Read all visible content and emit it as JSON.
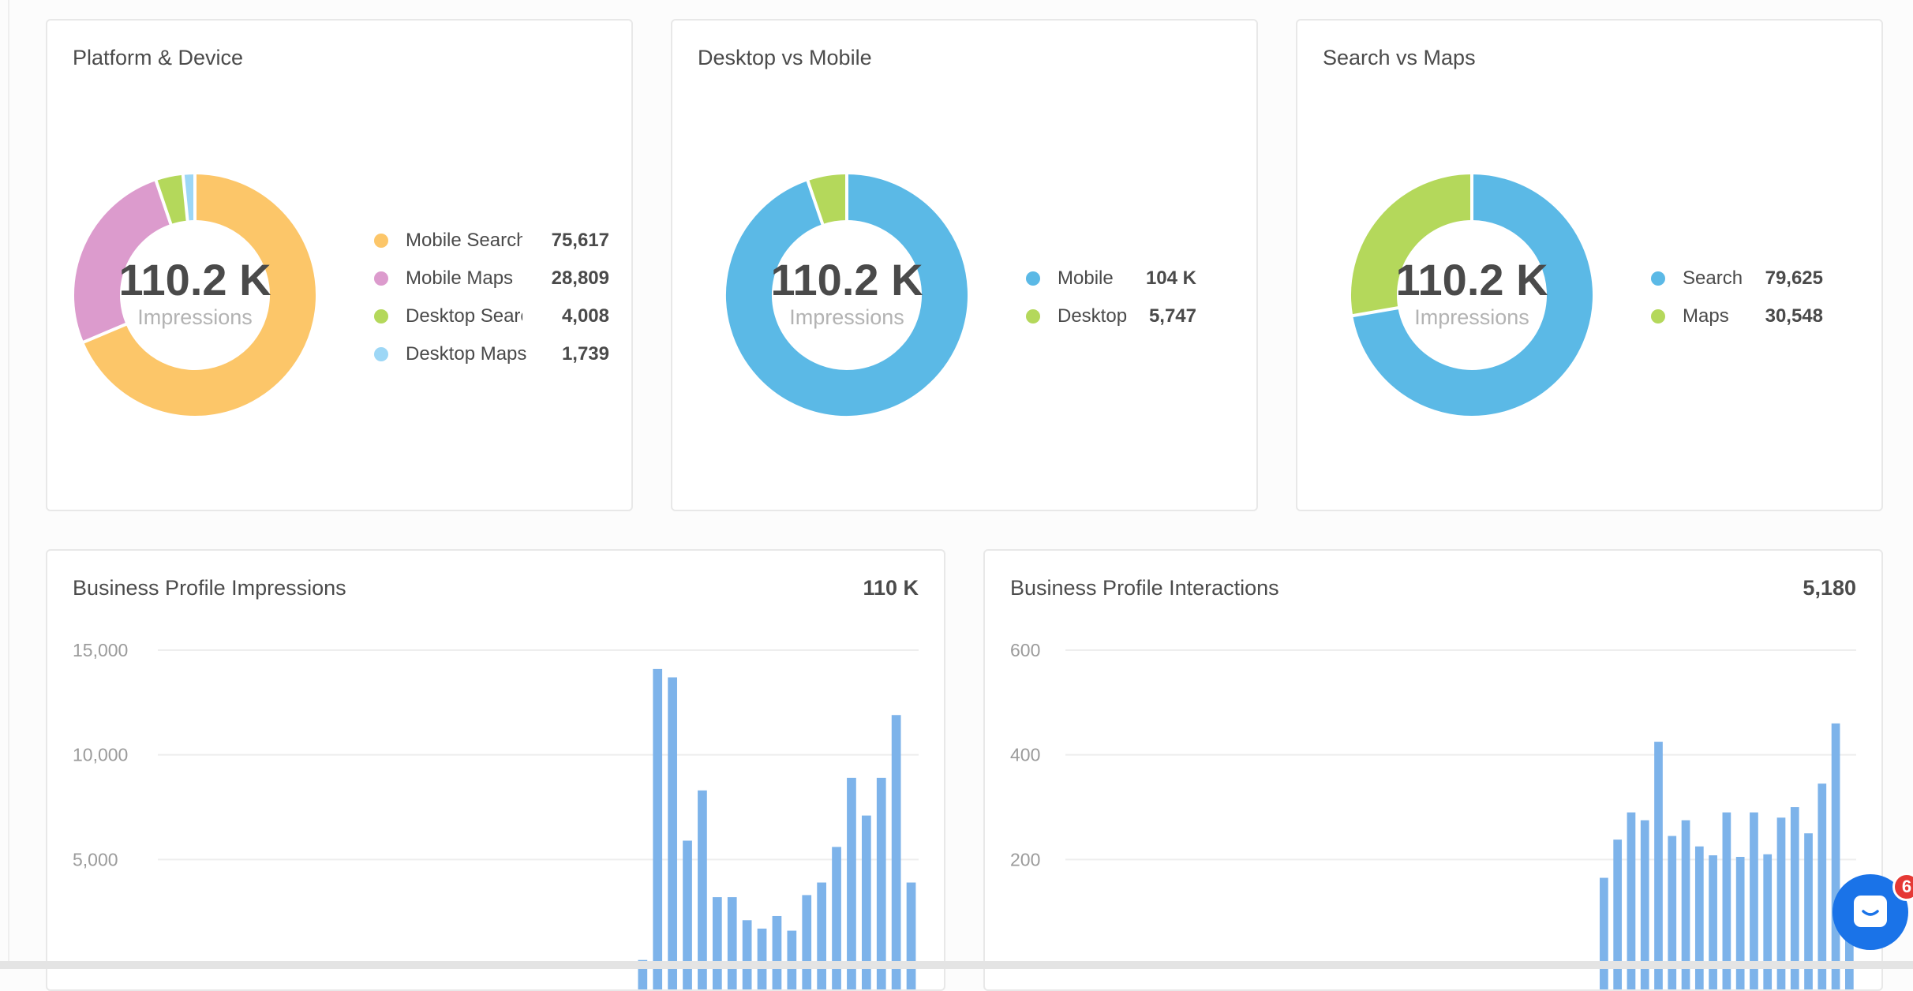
{
  "cards": {
    "platform_device": {
      "title": "Platform & Device",
      "center_value": "110.2 K",
      "center_label": "Impressions",
      "legend": [
        {
          "label": "Mobile Search",
          "value": "75,617",
          "color": "#fcc669"
        },
        {
          "label": "Mobile Maps",
          "value": "28,809",
          "color": "#dc9bcd"
        },
        {
          "label": "Desktop Search",
          "value": "4,008",
          "color": "#b4d85b"
        },
        {
          "label": "Desktop Maps",
          "value": "1,739",
          "color": "#9dd7f6"
        }
      ]
    },
    "desktop_mobile": {
      "title": "Desktop vs Mobile",
      "center_value": "110.2 K",
      "center_label": "Impressions",
      "legend": [
        {
          "label": "Mobile",
          "value": "104 K",
          "color": "#5bb9e6"
        },
        {
          "label": "Desktop",
          "value": "5,747",
          "color": "#b4d85b"
        }
      ]
    },
    "search_maps": {
      "title": "Search vs Maps",
      "center_value": "110.2 K",
      "center_label": "Impressions",
      "legend": [
        {
          "label": "Search",
          "value": "79,625",
          "color": "#5bb9e6"
        },
        {
          "label": "Maps",
          "value": "30,548",
          "color": "#b4d85b"
        }
      ]
    },
    "impressions": {
      "title": "Business Profile Impressions",
      "total": "110 K"
    },
    "interactions": {
      "title": "Business Profile Interactions",
      "total": "5,180"
    }
  },
  "chat": {
    "badge_count": "6",
    "icon": "chat-bubble-icon"
  },
  "chart_data": [
    {
      "type": "pie",
      "categories": [
        "Mobile Search",
        "Mobile Maps",
        "Desktop Search",
        "Desktop Maps"
      ],
      "values": [
        75617,
        28809,
        4008,
        1739
      ],
      "colors": [
        "#fcc669",
        "#dc9bcd",
        "#b4d85b",
        "#9dd7f6"
      ],
      "title": "Platform & Device"
    },
    {
      "type": "pie",
      "categories": [
        "Mobile",
        "Desktop"
      ],
      "values": [
        104000,
        5747
      ],
      "colors": [
        "#5bb9e6",
        "#b4d85b"
      ],
      "title": "Desktop vs Mobile"
    },
    {
      "type": "pie",
      "categories": [
        "Search",
        "Maps"
      ],
      "values": [
        79625,
        30548
      ],
      "colors": [
        "#5bb9e6",
        "#b4d85b"
      ],
      "title": "Search vs Maps"
    },
    {
      "type": "bar",
      "title": "Business Profile Impressions",
      "ylim": [
        0,
        15000
      ],
      "yticks": [
        15000,
        10000,
        5000
      ],
      "ytick_labels": [
        "15,000",
        "10,000",
        "5,000"
      ],
      "grid": true,
      "color": "#7db3ea",
      "values": [
        0,
        0,
        0,
        0,
        0,
        0,
        0,
        0,
        0,
        0,
        0,
        0,
        0,
        0,
        0,
        0,
        0,
        0,
        0,
        0,
        0,
        0,
        0,
        0,
        0,
        0,
        0,
        0,
        0,
        0,
        0,
        0,
        200,
        14100,
        13700,
        5900,
        8300,
        3200,
        3200,
        2100,
        1700,
        2300,
        1600,
        3300,
        3900,
        5600,
        8900,
        7100,
        8900,
        11900,
        3900
      ]
    },
    {
      "type": "bar",
      "title": "Business Profile Interactions",
      "ylim": [
        0,
        600
      ],
      "yticks": [
        600,
        400,
        200
      ],
      "ytick_labels": [
        "600",
        "400",
        "200"
      ],
      "grid": true,
      "color": "#7db3ea",
      "values": [
        0,
        0,
        0,
        0,
        0,
        0,
        0,
        0,
        0,
        0,
        0,
        0,
        0,
        0,
        0,
        0,
        0,
        0,
        0,
        0,
        0,
        0,
        0,
        0,
        0,
        0,
        0,
        0,
        0,
        0,
        0,
        0,
        0,
        0,
        0,
        0,
        0,
        0,
        0,
        165,
        238,
        290,
        275,
        425,
        245,
        275,
        225,
        208,
        290,
        205,
        290,
        210,
        280,
        300,
        250,
        345,
        460,
        55
      ]
    }
  ]
}
